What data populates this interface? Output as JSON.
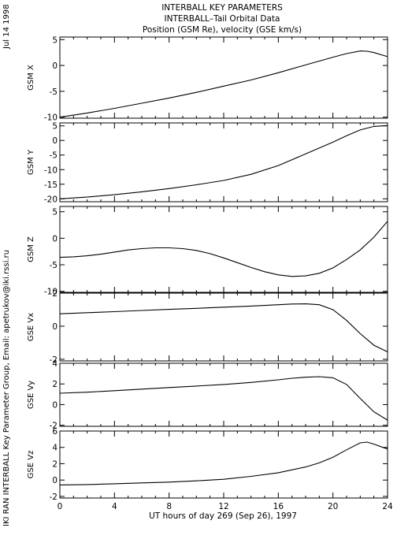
{
  "header": {
    "side_date": "Jul 14 1998",
    "side_credit": "IKI RAN INTERBALL Key Parameter Group, Email: apetrukov@iki.rssi.ru",
    "title_lines": [
      "INTERBALL KEY PARAMETERS",
      "INTERBALL–Tail Orbital Data",
      "Position (GSM Re), velocity (GSE km/s)"
    ]
  },
  "chart_data": {
    "type": "line",
    "x": {
      "label": "UT hours of day 269 (Sep 26), 1997",
      "range": [
        0,
        24
      ],
      "ticks": [
        0,
        4,
        8,
        12,
        16,
        20,
        24
      ],
      "tick_labels": [
        "0",
        "4",
        "8",
        "12",
        "16",
        "20",
        "24"
      ]
    },
    "panels": [
      {
        "ylabel": "GSM X",
        "ylim": [
          -10.2,
          5.5
        ],
        "ticks": [
          -10,
          -5,
          0,
          5
        ],
        "tick_labels": [
          "-10",
          "-5",
          "0",
          "5"
        ],
        "points": [
          [
            0,
            -10
          ],
          [
            2,
            -9.2
          ],
          [
            4,
            -8.3
          ],
          [
            6,
            -7.3
          ],
          [
            8,
            -6.3
          ],
          [
            10,
            -5.2
          ],
          [
            12,
            -4.0
          ],
          [
            14,
            -2.8
          ],
          [
            16,
            -1.4
          ],
          [
            18,
            0.1
          ],
          [
            20,
            1.6
          ],
          [
            21,
            2.3
          ],
          [
            22,
            2.8
          ],
          [
            22.5,
            2.75
          ],
          [
            23,
            2.5
          ],
          [
            24,
            1.7
          ]
        ]
      },
      {
        "ylabel": "GSM Y",
        "ylim": [
          -21,
          6
        ],
        "ticks": [
          -20,
          -15,
          -10,
          -5,
          0,
          5
        ],
        "tick_labels": [
          "-20",
          "-15",
          "-10",
          "-5",
          "0",
          "5"
        ],
        "points": [
          [
            0,
            -20
          ],
          [
            2,
            -19.4
          ],
          [
            4,
            -18.6
          ],
          [
            6,
            -17.6
          ],
          [
            8,
            -16.5
          ],
          [
            10,
            -15.2
          ],
          [
            12,
            -13.7
          ],
          [
            14,
            -11.6
          ],
          [
            16,
            -8.6
          ],
          [
            18,
            -4.6
          ],
          [
            20,
            -0.6
          ],
          [
            21,
            1.6
          ],
          [
            22,
            3.6
          ],
          [
            23,
            4.8
          ],
          [
            24,
            5.1
          ]
        ]
      },
      {
        "ylabel": "GSM Z",
        "ylim": [
          -10.2,
          6
        ],
        "ticks": [
          -10,
          -5,
          0,
          5
        ],
        "tick_labels": [
          "-10",
          "-5",
          "0",
          "5"
        ],
        "points": [
          [
            0,
            -3.6
          ],
          [
            1,
            -3.5
          ],
          [
            2,
            -3.3
          ],
          [
            3,
            -3.0
          ],
          [
            4,
            -2.6
          ],
          [
            5,
            -2.2
          ],
          [
            6,
            -1.95
          ],
          [
            7,
            -1.8
          ],
          [
            8,
            -1.8
          ],
          [
            9,
            -1.95
          ],
          [
            10,
            -2.3
          ],
          [
            11,
            -2.9
          ],
          [
            12,
            -3.7
          ],
          [
            13,
            -4.6
          ],
          [
            14,
            -5.5
          ],
          [
            15,
            -6.3
          ],
          [
            16,
            -6.9
          ],
          [
            17,
            -7.2
          ],
          [
            18,
            -7.1
          ],
          [
            19,
            -6.6
          ],
          [
            20,
            -5.6
          ],
          [
            21,
            -4.0
          ],
          [
            22,
            -2.2
          ],
          [
            23,
            0.2
          ],
          [
            24,
            3.2
          ]
        ]
      },
      {
        "ylabel": "GSE Vx",
        "ylim": [
          -2.1,
          2
        ],
        "ticks": [
          -2,
          0,
          2
        ],
        "tick_labels": [
          "-2",
          "0",
          "2"
        ],
        "points": [
          [
            0,
            0.75
          ],
          [
            2,
            0.82
          ],
          [
            4,
            0.88
          ],
          [
            6,
            0.95
          ],
          [
            8,
            1.02
          ],
          [
            10,
            1.08
          ],
          [
            12,
            1.15
          ],
          [
            14,
            1.22
          ],
          [
            16,
            1.3
          ],
          [
            17,
            1.34
          ],
          [
            18,
            1.35
          ],
          [
            19,
            1.3
          ],
          [
            20,
            1.0
          ],
          [
            21,
            0.35
          ],
          [
            22,
            -0.45
          ],
          [
            23,
            -1.15
          ],
          [
            24,
            -1.55
          ]
        ]
      },
      {
        "ylabel": "GSE Vy",
        "ylim": [
          -2.1,
          4
        ],
        "ticks": [
          -2,
          0,
          2,
          4
        ],
        "tick_labels": [
          "-2",
          "0",
          "2",
          "4"
        ],
        "points": [
          [
            0,
            1.1
          ],
          [
            2,
            1.2
          ],
          [
            4,
            1.35
          ],
          [
            6,
            1.5
          ],
          [
            8,
            1.65
          ],
          [
            10,
            1.8
          ],
          [
            12,
            1.95
          ],
          [
            14,
            2.15
          ],
          [
            16,
            2.4
          ],
          [
            17,
            2.55
          ],
          [
            18,
            2.65
          ],
          [
            19,
            2.7
          ],
          [
            20,
            2.6
          ],
          [
            21,
            1.95
          ],
          [
            22,
            0.6
          ],
          [
            23,
            -0.7
          ],
          [
            24,
            -1.5
          ]
        ]
      },
      {
        "ylabel": "GSE Vz",
        "ylim": [
          -2.2,
          6
        ],
        "ticks": [
          -2,
          0,
          2,
          4,
          6
        ],
        "tick_labels": [
          "-2",
          "0",
          "2",
          "4",
          "6"
        ],
        "points": [
          [
            0,
            -0.6
          ],
          [
            2,
            -0.55
          ],
          [
            4,
            -0.45
          ],
          [
            6,
            -0.35
          ],
          [
            8,
            -0.25
          ],
          [
            10,
            -0.1
          ],
          [
            12,
            0.1
          ],
          [
            14,
            0.45
          ],
          [
            16,
            0.9
          ],
          [
            18,
            1.6
          ],
          [
            19,
            2.1
          ],
          [
            20,
            2.8
          ],
          [
            21,
            3.7
          ],
          [
            22,
            4.55
          ],
          [
            22.5,
            4.65
          ],
          [
            23,
            4.4
          ],
          [
            24,
            3.8
          ]
        ]
      }
    ]
  }
}
